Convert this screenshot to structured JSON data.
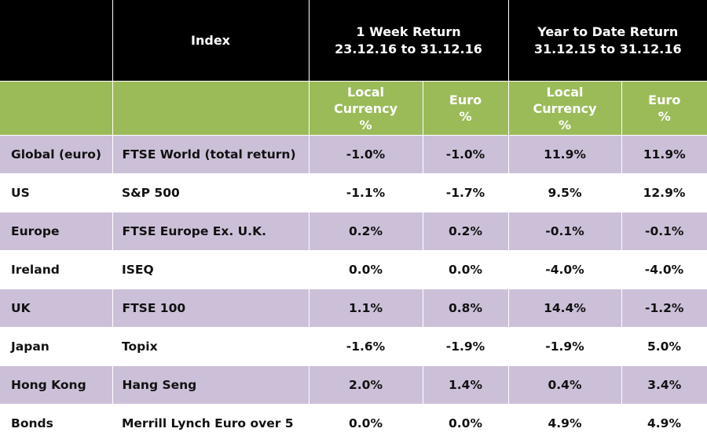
{
  "header": {
    "index_label": "Index",
    "week_title": "1 Week Return",
    "week_period": "23.12.16 to 31.12.16",
    "ytd_title": "Year to Date Return",
    "ytd_period": "31.12.15 to 31.12.16"
  },
  "subheader": {
    "local_line1": "Local",
    "local_line2": "Currency",
    "local_line3": "%",
    "euro_line1": "Euro",
    "euro_line2": "%"
  },
  "colors": {
    "header_bg": "#000000",
    "subheader_bg": "#9bbb59",
    "shaded_row_bg": "#ccc0d9"
  },
  "rows": [
    {
      "region": "Global (euro)",
      "index": "FTSE World (total return)",
      "week_local": "-1.0%",
      "week_euro": "-1.0%",
      "ytd_local": "11.9%",
      "ytd_euro": "11.9%"
    },
    {
      "region": "US",
      "index": "S&P 500",
      "week_local": "-1.1%",
      "week_euro": "-1.7%",
      "ytd_local": "9.5%",
      "ytd_euro": "12.9%"
    },
    {
      "region": "Europe",
      "index": "FTSE Europe Ex. U.K.",
      "week_local": "0.2%",
      "week_euro": "0.2%",
      "ytd_local": "-0.1%",
      "ytd_euro": "-0.1%"
    },
    {
      "region": "Ireland",
      "index": "ISEQ",
      "week_local": "0.0%",
      "week_euro": "0.0%",
      "ytd_local": "-4.0%",
      "ytd_euro": "-4.0%"
    },
    {
      "region": "UK",
      "index": "FTSE 100",
      "week_local": "1.1%",
      "week_euro": "0.8%",
      "ytd_local": "14.4%",
      "ytd_euro": "-1.2%"
    },
    {
      "region": "Japan",
      "index": "Topix",
      "week_local": "-1.6%",
      "week_euro": "-1.9%",
      "ytd_local": "-1.9%",
      "ytd_euro": "5.0%"
    },
    {
      "region": "Hong Kong",
      "index": "Hang Seng",
      "week_local": "2.0%",
      "week_euro": "1.4%",
      "ytd_local": "0.4%",
      "ytd_euro": "3.4%"
    },
    {
      "region": "Bonds",
      "index": "Merrill Lynch Euro over 5",
      "week_local": "0.0%",
      "week_euro": "0.0%",
      "ytd_local": "4.9%",
      "ytd_euro": "4.9%"
    }
  ]
}
